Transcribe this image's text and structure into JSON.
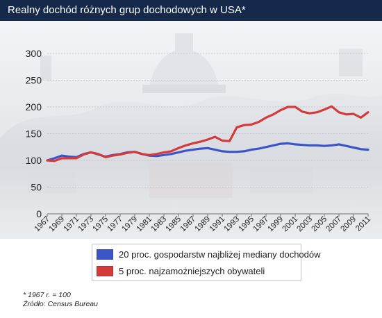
{
  "header": {
    "title": "Realny dochód różnych grup dochodowych w USA*"
  },
  "footnotes": {
    "base_note": "* 1967 r. = 100",
    "source": "Źródło: Census Bureau"
  },
  "chart_data": {
    "type": "line",
    "title": "Realny dochód różnych grup dochodowych w USA*",
    "xlabel": "",
    "ylabel": "",
    "ylim": [
      0,
      300
    ],
    "yticks": [
      0,
      50,
      100,
      150,
      200,
      250,
      300
    ],
    "xlim": [
      1967,
      2011
    ],
    "xtick_labels": [
      "1967",
      "1969",
      "1971",
      "1973",
      "1975",
      "1977",
      "1979",
      "1981",
      "1983",
      "1985",
      "1987",
      "1989",
      "1991",
      "1993",
      "1995",
      "1997",
      "1999",
      "2001",
      "2003",
      "2005",
      "2007",
      "2009",
      "2011"
    ],
    "grid": true,
    "legend_position": "bottom",
    "x": [
      1967,
      1968,
      1969,
      1970,
      1971,
      1972,
      1973,
      1974,
      1975,
      1976,
      1977,
      1978,
      1979,
      1980,
      1981,
      1982,
      1983,
      1984,
      1985,
      1986,
      1987,
      1988,
      1989,
      1990,
      1991,
      1992,
      1993,
      1994,
      1995,
      1996,
      1997,
      1998,
      1999,
      2000,
      2001,
      2002,
      2003,
      2004,
      2005,
      2006,
      2007,
      2008,
      2009,
      2010,
      2011
    ],
    "series": [
      {
        "name": "20 proc. gospodarstw najbliżej mediany dochodów",
        "color": "#3b55c9",
        "values": [
          100,
          104,
          109,
          107,
          106,
          112,
          115,
          111,
          107,
          110,
          112,
          115,
          116,
          112,
          109,
          108,
          110,
          112,
          115,
          118,
          120,
          122,
          123,
          120,
          117,
          116,
          116,
          117,
          120,
          122,
          125,
          128,
          131,
          132,
          130,
          129,
          128,
          128,
          127,
          128,
          130,
          127,
          124,
          121,
          120
        ]
      },
      {
        "name": "5 proc. najzamożniejszych obywateli",
        "color": "#d43a3a",
        "values": [
          100,
          99,
          104,
          104,
          104,
          111,
          115,
          112,
          106,
          109,
          111,
          114,
          116,
          112,
          110,
          112,
          115,
          117,
          123,
          128,
          132,
          135,
          139,
          144,
          137,
          136,
          162,
          166,
          167,
          172,
          180,
          186,
          194,
          200,
          200,
          191,
          188,
          190,
          195,
          201,
          190,
          186,
          187,
          180,
          190
        ]
      }
    ]
  }
}
